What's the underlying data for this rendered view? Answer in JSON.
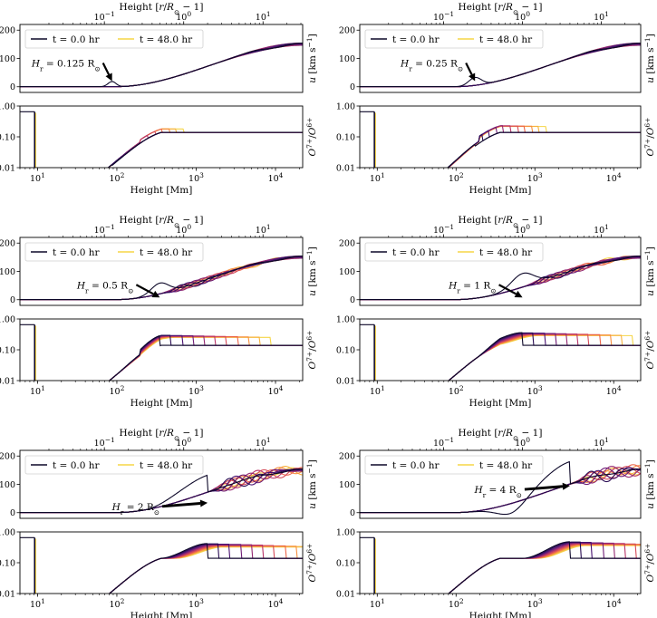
{
  "chart_data": {
    "type": "line",
    "figure_title": "",
    "bottom_xlabel": "Height [Mm]",
    "top_xlabel": "Height [r/R⊙ − 1]",
    "top_ylabel": "u [km s⁻¹]",
    "bottom_ylabel": "O⁷⁺/O⁶⁺",
    "x_range_Mm": [
      6,
      22000
    ],
    "top_ylim": [
      -20,
      220
    ],
    "top_yticks": [
      "0",
      "100",
      "200"
    ],
    "bottom_ylim_log": [
      0.01,
      1.0
    ],
    "bottom_yticks": [
      "0.01",
      "0.10",
      "1.00"
    ],
    "bottom_xticks": [
      {
        "label": "10",
        "sup": "1",
        "value": 10
      },
      {
        "label": "10",
        "sup": "2",
        "value": 100
      },
      {
        "label": "10",
        "sup": "3",
        "value": 1000
      },
      {
        "label": "10",
        "sup": "4",
        "value": 10000
      }
    ],
    "top_xticks": [
      {
        "label": "10",
        "sup": "−1",
        "value": 69.6
      },
      {
        "label": "10",
        "sup": "0",
        "value": 696
      },
      {
        "label": "10",
        "sup": "1",
        "value": 6960
      }
    ],
    "legend": [
      {
        "label": "t = 0.0 hr",
        "color": "#0d0829"
      },
      {
        "label": "t = 48.0 hr",
        "color": "#f5d547"
      }
    ],
    "colormap": [
      "#0d0829",
      "#3b0f6f",
      "#7b1f77",
      "#b8356a",
      "#e9584e",
      "#f99b3c",
      "#f5d547"
    ],
    "series_count": 11,
    "panels": [
      {
        "annotation": "H",
        "annotation_sub": "r",
        "annotation_value": " = 0.125 R",
        "annotation_unit_sub": "⊙",
        "Hr_Mm": 87
      },
      {
        "annotation": "H",
        "annotation_sub": "r",
        "annotation_value": " = 0.25 R",
        "annotation_unit_sub": "⊙",
        "Hr_Mm": 174
      },
      {
        "annotation": "H",
        "annotation_sub": "r",
        "annotation_value": " = 0.5 R",
        "annotation_unit_sub": "⊙",
        "Hr_Mm": 348
      },
      {
        "annotation": "H",
        "annotation_sub": "r",
        "annotation_value": " = 1 R",
        "annotation_unit_sub": "⊙",
        "Hr_Mm": 696
      },
      {
        "annotation": "H",
        "annotation_sub": "r",
        "annotation_value": " = 2 R",
        "annotation_unit_sub": "⊙",
        "Hr_Mm": 1392
      },
      {
        "annotation": "H",
        "annotation_sub": "r",
        "annotation_value": " = 4 R",
        "annotation_unit_sub": "⊙",
        "Hr_Mm": 2784
      }
    ]
  }
}
